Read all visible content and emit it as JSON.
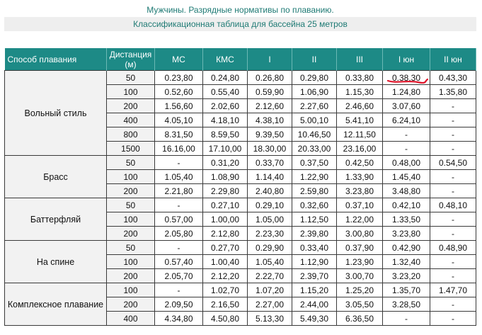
{
  "title": {
    "line1": "Мужчины. Разрядные нормативы по плаванию.",
    "line2": "Классификационная таблица для бассейна 25 метров"
  },
  "table": {
    "headers": [
      "Способ плавания",
      "Дистанция (м)",
      "МС",
      "КМС",
      "I",
      "II",
      "III",
      "I юн",
      "II юн"
    ],
    "groups": [
      {
        "style": "Вольный стиль",
        "rows": [
          {
            "dist": "50",
            "values": [
              "0.23,80",
              "0.24,80",
              "0.26,80",
              "0.29,80",
              "0.33,80",
              "0.38,30",
              "0.43,30"
            ]
          },
          {
            "dist": "100",
            "values": [
              "0.52,60",
              "0.55,40",
              "0.59,90",
              "1.06,90",
              "1.15,30",
              "1.24,80",
              "1.35,80"
            ]
          },
          {
            "dist": "200",
            "values": [
              "1.56,60",
              "2.02,60",
              "2.12,60",
              "2.27,60",
              "2.46,60",
              "3.07,60",
              "-"
            ]
          },
          {
            "dist": "400",
            "values": [
              "4.05,10",
              "4.18,10",
              "4.38,10",
              "5.00,10",
              "5.41,10",
              "6.24,10",
              "-"
            ]
          },
          {
            "dist": "800",
            "values": [
              "8.31,50",
              "8.59,50",
              "9.39,50",
              "10.46,50",
              "12.11,50",
              "-",
              "-"
            ]
          },
          {
            "dist": "1500",
            "values": [
              "16.16,00",
              "17.10,00",
              "18.30,00",
              "20.33,00",
              "23.16,00",
              "-",
              "-"
            ]
          }
        ]
      },
      {
        "style": "Брасс",
        "rows": [
          {
            "dist": "50",
            "values": [
              "-",
              "0.31,20",
              "0.33,70",
              "0.37,50",
              "0.42,50",
              "0.48,00",
              "0.54,50"
            ]
          },
          {
            "dist": "100",
            "values": [
              "1.05,40",
              "1.08,90",
              "1.14,40",
              "1.22,90",
              "1.33,90",
              "1.45,40",
              "-"
            ]
          },
          {
            "dist": "200",
            "values": [
              "2.21,80",
              "2.29,80",
              "2.40,80",
              "2.59,80",
              "3.23,80",
              "3.48,80",
              "-"
            ]
          }
        ]
      },
      {
        "style": "Баттерфляй",
        "rows": [
          {
            "dist": "50",
            "values": [
              "-",
              "0.27,10",
              "0.29,10",
              "0.32,60",
              "0.37,10",
              "0.42,10",
              "0.48,10"
            ]
          },
          {
            "dist": "100",
            "values": [
              "0.57,00",
              "1.00,00",
              "1.05,00",
              "1.12,50",
              "1.22,00",
              "1.33,50",
              "-"
            ]
          },
          {
            "dist": "200",
            "values": [
              "2.05,80",
              "2.12,80",
              "2.23,30",
              "2.39,80",
              "3.00,80",
              "3.23,80",
              "-"
            ]
          }
        ]
      },
      {
        "style": "На спине",
        "rows": [
          {
            "dist": "50",
            "values": [
              "-",
              "0.27,70",
              "0.29,90",
              "0.33,40",
              "0.37,90",
              "0.42,90",
              "0.48,90"
            ]
          },
          {
            "dist": "100",
            "values": [
              "0.57,40",
              "1.00,40",
              "1.05,40",
              "1.12,90",
              "1.23,90",
              "1.32,40",
              "-"
            ]
          },
          {
            "dist": "200",
            "values": [
              "2.05,70",
              "2.12,20",
              "2.22,70",
              "2.39,70",
              "3.00,70",
              "3.23,20",
              "-"
            ]
          }
        ]
      },
      {
        "style": "Комплексное плавание",
        "rows": [
          {
            "dist": "100",
            "values": [
              "-",
              "1.02,70",
              "1.07,20",
              "1.15,20",
              "1.25,20",
              "1.35,70",
              "1.47,70"
            ]
          },
          {
            "dist": "200",
            "values": [
              "2.09,50",
              "2.16,50",
              "2.27,00",
              "2.44,00",
              "3.05,50",
              "3.28,50",
              "-"
            ]
          },
          {
            "dist": "400",
            "values": [
              "4.34,80",
              "4.50,80",
              "5.13,30",
              "5.49,30",
              "6.36,50",
              "-",
              "-"
            ]
          }
        ]
      }
    ]
  },
  "colors": {
    "header_bg": "#1d8a86",
    "title_text": "#1e7a74",
    "annotation": "#e0142a"
  }
}
